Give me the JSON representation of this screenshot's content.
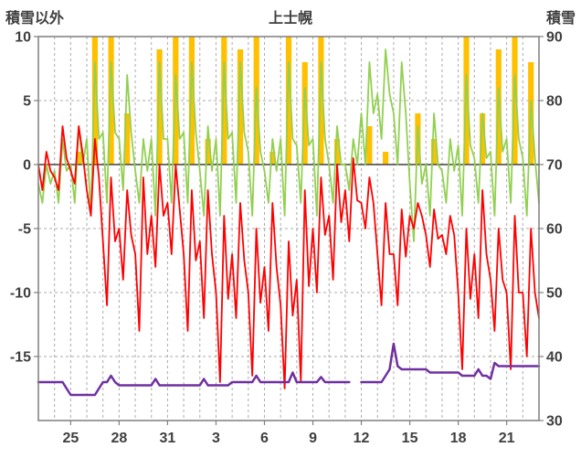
{
  "header": {
    "left_axis_title": "積雪以外",
    "title": "上士幌",
    "right_axis_title": "積雪"
  },
  "chart_data": {
    "type": "line",
    "title": "上士幌",
    "subtitle": "",
    "legend": "none",
    "grid": {
      "vertical": true,
      "horizontal": true,
      "style": "dashed",
      "color": "#ababab"
    },
    "x_axis": {
      "range": [
        0,
        31
      ],
      "unit": "day",
      "ticks": [
        {
          "label": "25",
          "t": 2
        },
        {
          "label": "28",
          "t": 5
        },
        {
          "label": "31",
          "t": 8
        },
        {
          "label": "3",
          "t": 11
        },
        {
          "label": "6",
          "t": 14
        },
        {
          "label": "9",
          "t": 17
        },
        {
          "label": "12",
          "t": 20
        },
        {
          "label": "15",
          "t": 23
        },
        {
          "label": "18",
          "t": 26
        },
        {
          "label": "21",
          "t": 29
        }
      ]
    },
    "left_axis": {
      "label": "積雪以外",
      "range": [
        -20,
        10
      ],
      "ticks": [
        10,
        5,
        0,
        -5,
        -10,
        -15
      ]
    },
    "right_axis": {
      "label": "積雪",
      "range": [
        30,
        90
      ],
      "ticks": [
        90,
        80,
        70,
        60,
        50,
        40,
        30
      ]
    },
    "zero_line_value": 0,
    "series": [
      {
        "name": "sunshine",
        "type": "bar",
        "axis": "left",
        "color": "#FFC000",
        "x_step": 1,
        "bar_width_days": 0.35,
        "values": [
          0,
          0,
          1,
          10,
          10,
          4,
          0,
          9,
          10,
          10,
          2,
          10,
          9,
          10,
          1,
          10,
          8,
          10,
          2,
          0,
          3,
          1,
          0,
          4,
          2,
          0,
          10,
          4,
          9,
          10,
          8
        ]
      },
      {
        "name": "temperature-green",
        "type": "line",
        "axis": "left",
        "color": "#92D050",
        "width": 1.8,
        "x_step": 0.25,
        "values": [
          -1.5,
          -3,
          0,
          -1.5,
          -0.5,
          -3,
          2,
          -0.5,
          0,
          -3,
          3,
          0,
          2,
          -4,
          8,
          2,
          2.5,
          -3,
          8,
          2.5,
          2,
          -2,
          7,
          2.5,
          -0.5,
          -3,
          2,
          -0.5,
          2,
          -4,
          8,
          2,
          2,
          -3,
          7,
          2,
          2.5,
          -3,
          8,
          2.5,
          -0.5,
          -4,
          3,
          -0.5,
          2,
          -4,
          8,
          2,
          2.5,
          -3,
          8,
          2.5,
          1,
          -4,
          6,
          1,
          -0.5,
          -3,
          2,
          -0.5,
          2,
          -4,
          8,
          2,
          1.5,
          -3,
          6,
          1.5,
          2,
          -4,
          8,
          2,
          0,
          -3,
          3,
          0,
          0,
          -2,
          2,
          0,
          4,
          0,
          8,
          4,
          5.5,
          2,
          9,
          5.5,
          4,
          0,
          8,
          4,
          -1.5,
          -6,
          3,
          -1.5,
          0,
          -4,
          4,
          0,
          -0.5,
          -3,
          2,
          -0.5,
          1.5,
          -4,
          7,
          1.5,
          0.5,
          -3,
          4,
          0.5,
          1,
          -4,
          6,
          1,
          2,
          -3,
          7,
          2,
          0.5,
          -4,
          5,
          0.5,
          -3
        ]
      },
      {
        "name": "temperature-red",
        "type": "line",
        "axis": "left",
        "color": "#FF0000",
        "width": 1.8,
        "x_step": 0.25,
        "values": [
          0,
          -2,
          1,
          -0.5,
          -1,
          -2,
          3,
          0.5,
          -0.5,
          -1.5,
          3,
          0.8,
          -2,
          -4,
          2,
          -1,
          -6,
          -11,
          -1,
          -6,
          -5,
          -9,
          -2,
          -5.5,
          -7,
          -13,
          -1,
          -7,
          -4,
          -8,
          0,
          -4,
          -3,
          -7,
          0,
          -3.5,
          -7,
          -13,
          -2,
          -7.5,
          -6,
          -12,
          -2,
          -7,
          -10,
          -17,
          -4,
          -10.5,
          -7,
          -12,
          -3,
          -7.5,
          -10,
          -16.5,
          -5,
          -10.8,
          -8,
          -13,
          -3,
          -8,
          -11,
          -17.5,
          -6,
          -11.8,
          -9,
          -17,
          -2,
          -9.5,
          -5,
          -10,
          -1,
          -5.5,
          -4,
          -9,
          0,
          -4.5,
          -2,
          -6,
          0.5,
          -2.8,
          -3,
          -5,
          -1,
          -3,
          -7,
          -11,
          -3,
          -7,
          -7,
          -11,
          -3.5,
          -7.2,
          -4,
          -5,
          -3,
          -4,
          -5.5,
          -8,
          -3.5,
          -5.8,
          -5.5,
          -7,
          -4,
          -5.5,
          -10,
          -16,
          -5,
          -10.5,
          -7,
          -12,
          -2,
          -7,
          -9,
          -13,
          -5,
          -9,
          -10,
          -16,
          -4,
          -10,
          -10,
          -15,
          -5,
          -10,
          -12
        ]
      },
      {
        "name": "snow-depth-purple",
        "type": "line",
        "axis": "right",
        "color": "#7030A0",
        "width": 2.5,
        "x_step": 0.25,
        "values": [
          36,
          36,
          36,
          36,
          36,
          36,
          36,
          35,
          34,
          34,
          34,
          34,
          34,
          34,
          34,
          35,
          36,
          36,
          37,
          36,
          35.5,
          35.5,
          35.5,
          35.5,
          35.5,
          35.5,
          35.5,
          35.5,
          35.5,
          36.5,
          35.5,
          35.5,
          35.5,
          35.5,
          35.5,
          35.5,
          35.5,
          35.5,
          35.5,
          35.5,
          35.5,
          36.5,
          35.5,
          35.5,
          35.5,
          35.5,
          35.5,
          35.5,
          36,
          36,
          36,
          36,
          36,
          36,
          37,
          36,
          36,
          36,
          36,
          36,
          36,
          36,
          36,
          37.5,
          36,
          36,
          36,
          36,
          36,
          36,
          36.8,
          36,
          36,
          36,
          36,
          36,
          36,
          36,
          null,
          null,
          36,
          36,
          36,
          36,
          36,
          36,
          37,
          38,
          42,
          38.5,
          38,
          38,
          38,
          38,
          38,
          38,
          38,
          37.5,
          37.5,
          37.5,
          37.5,
          37.5,
          37.5,
          37.5,
          37.5,
          37,
          37,
          37,
          37,
          38,
          37,
          37,
          36.5,
          39,
          38.5,
          38.5,
          38.5,
          38.5,
          38.5,
          38.5,
          38.5,
          38.5,
          38.5,
          38.5,
          38.5
        ]
      }
    ],
    "colors": {
      "zero_line": "#595959",
      "plot_border": "#7f7f7f",
      "tick": "#7f7f7f",
      "text": "#3f3f3f"
    }
  }
}
